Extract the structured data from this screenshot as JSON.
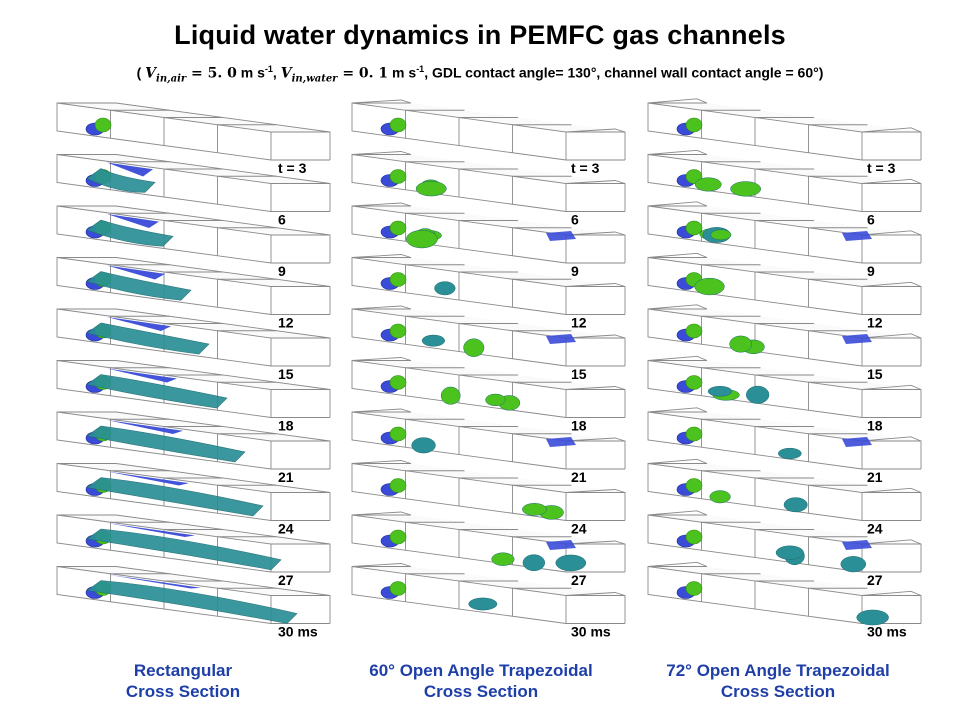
{
  "title": "Liquid water dynamics in PEMFC gas channels",
  "subtitle": {
    "open": "( ",
    "v_air_sym": "V",
    "v_air_sub": "in,air",
    "v_air_eq": " = 5. 0",
    "v_air_unit": " m s",
    "v_air_exp": "-1",
    "comma1": ", ",
    "v_water_sym": "V",
    "v_water_sub": "in,water",
    "v_water_eq": " = 0. 1",
    "v_water_unit": " m s",
    "v_water_exp": "-1",
    "rest": ", GDL contact angle= 130°, channel wall contact angle = 60°)"
  },
  "time_labels": [
    "t = 3",
    "6",
    "9",
    "12",
    "15",
    "18",
    "21",
    "24",
    "27",
    "30 ms"
  ],
  "columns": [
    {
      "caption_line1": "Rectangular",
      "caption_line2": "Cross Section",
      "shape": "rectangular"
    },
    {
      "caption_line1": "60° Open Angle Trapezoidal",
      "caption_line2": "Cross Section",
      "shape": "trapezoidal-60"
    },
    {
      "caption_line1": "72° Open Angle Trapezoidal",
      "caption_line2": "Cross Section",
      "shape": "trapezoidal-72"
    }
  ],
  "colors": {
    "water_surface": "#2a8f96",
    "water_highlight": "#5fc7c7",
    "inlet_water": "#3a4bd8",
    "interface": "#4cc21e",
    "channel_wall": "#8a8a8a",
    "caption": "#1f3fa8"
  }
}
